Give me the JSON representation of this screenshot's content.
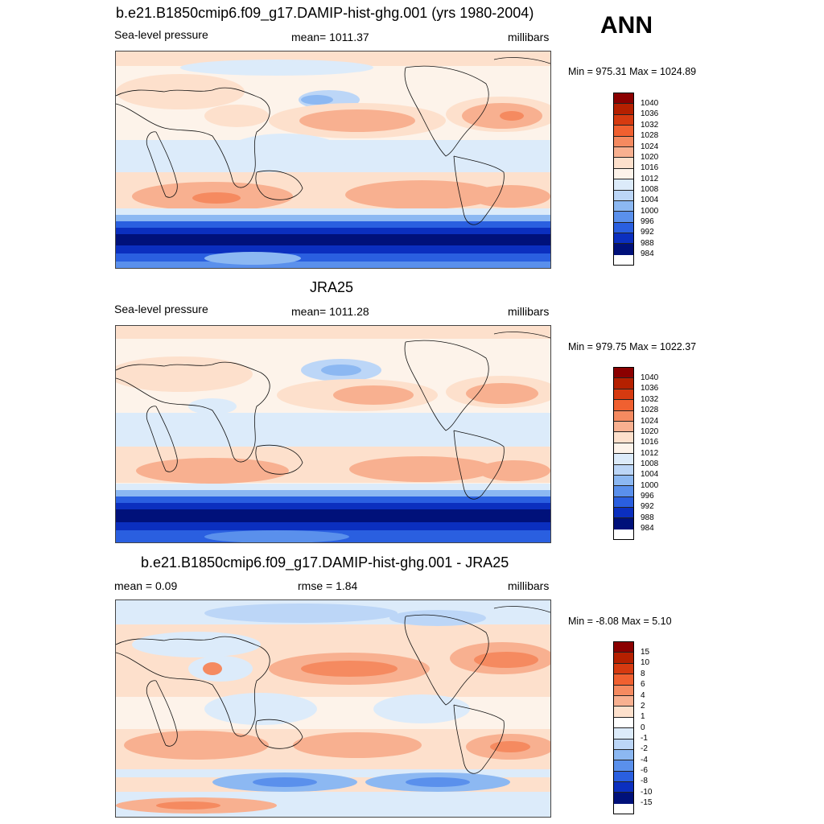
{
  "season": "ANN",
  "panels": [
    {
      "title": "b.e21.B1850cmip6.f09_g17.DAMIP-hist-ghg.001 (yrs 1980-2004)",
      "left_label": "Sea-level pressure",
      "center_label": "mean= 1011.37",
      "right_label": "millibars",
      "minmax": "Min = 975.31 Max = 1024.89",
      "ticks": [
        "1040",
        "1036",
        "1032",
        "1028",
        "1024",
        "1020",
        "1016",
        "1012",
        "1008",
        "1004",
        "1000",
        "996",
        "992",
        "988",
        "984"
      ]
    },
    {
      "title": "JRA25",
      "left_label": "Sea-level pressure",
      "center_label": "mean= 1011.28",
      "right_label": "millibars",
      "minmax": "Min = 979.75 Max = 1022.37",
      "ticks": [
        "1040",
        "1036",
        "1032",
        "1028",
        "1024",
        "1020",
        "1016",
        "1012",
        "1008",
        "1004",
        "1000",
        "996",
        "992",
        "988",
        "984"
      ]
    },
    {
      "title": "b.e21.B1850cmip6.f09_g17.DAMIP-hist-ghg.001 - JRA25",
      "left_label": "mean =   0.09",
      "center_label": "rmse =   1.84",
      "right_label": "millibars",
      "minmax": "Min =  -8.08 Max =   5.10",
      "ticks": [
        "15",
        "10",
        "8",
        "6",
        "4",
        "2",
        "1",
        "0",
        "-1",
        "-2",
        "-4",
        "-6",
        "-8",
        "-10",
        "-15"
      ]
    }
  ],
  "colors": {
    "abs_scale": [
      "#8b0000",
      "#b52000",
      "#d63a10",
      "#f06030",
      "#f58a60",
      "#f8b090",
      "#fde0cc",
      "#fdf3ea",
      "#dcebfa",
      "#bcd6f7",
      "#8cb8f2",
      "#5a90ec",
      "#2a5fe0",
      "#0b2fbf",
      "#00117a"
    ],
    "diff_scale": [
      "#8b0000",
      "#b52000",
      "#d63a10",
      "#f06030",
      "#f58a60",
      "#f8b090",
      "#fde0cc",
      "#ffffff",
      "#dcebfa",
      "#bcd6f7",
      "#8cb8f2",
      "#5a90ec",
      "#2a5fe0",
      "#0b2fbf",
      "#00117a"
    ]
  }
}
